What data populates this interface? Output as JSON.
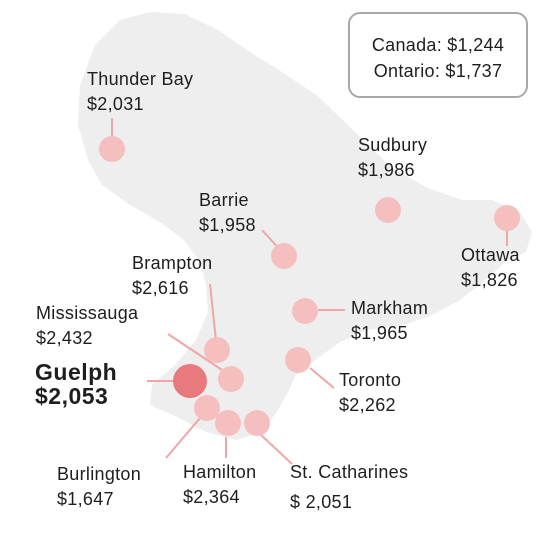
{
  "colors": {
    "land": "#eeeeee",
    "marker": "#f5bfc0",
    "highlight": "#e8797d",
    "leader": "#f0a6a8",
    "text": "#1e1e1e"
  },
  "legend": {
    "canada": "Canada: $1,244",
    "ontario": "Ontario: $1,737"
  },
  "cities": {
    "thunder_bay": {
      "name": "Thunder Bay",
      "value": "$2,031"
    },
    "sudbury": {
      "name": "Sudbury",
      "value": "$1,986"
    },
    "barrie": {
      "name": "Barrie",
      "value": "$1,958"
    },
    "ottawa": {
      "name": "Ottawa",
      "value": "$1,826"
    },
    "brampton": {
      "name": "Brampton",
      "value": "$2,616"
    },
    "mississauga": {
      "name": "Mississauga",
      "value": "$2,432"
    },
    "markham": {
      "name": "Markham",
      "value": "$1,965"
    },
    "guelph": {
      "name": "Guelph",
      "value": "$2,053"
    },
    "toronto": {
      "name": "Toronto",
      "value": "$2,262"
    },
    "burlington": {
      "name": "Burlington",
      "value": "$1,647"
    },
    "hamilton": {
      "name": "Hamilton",
      "value": "$2,364"
    },
    "st_catharines": {
      "name": "St. Catharines",
      "value": "$ 2,051"
    }
  }
}
